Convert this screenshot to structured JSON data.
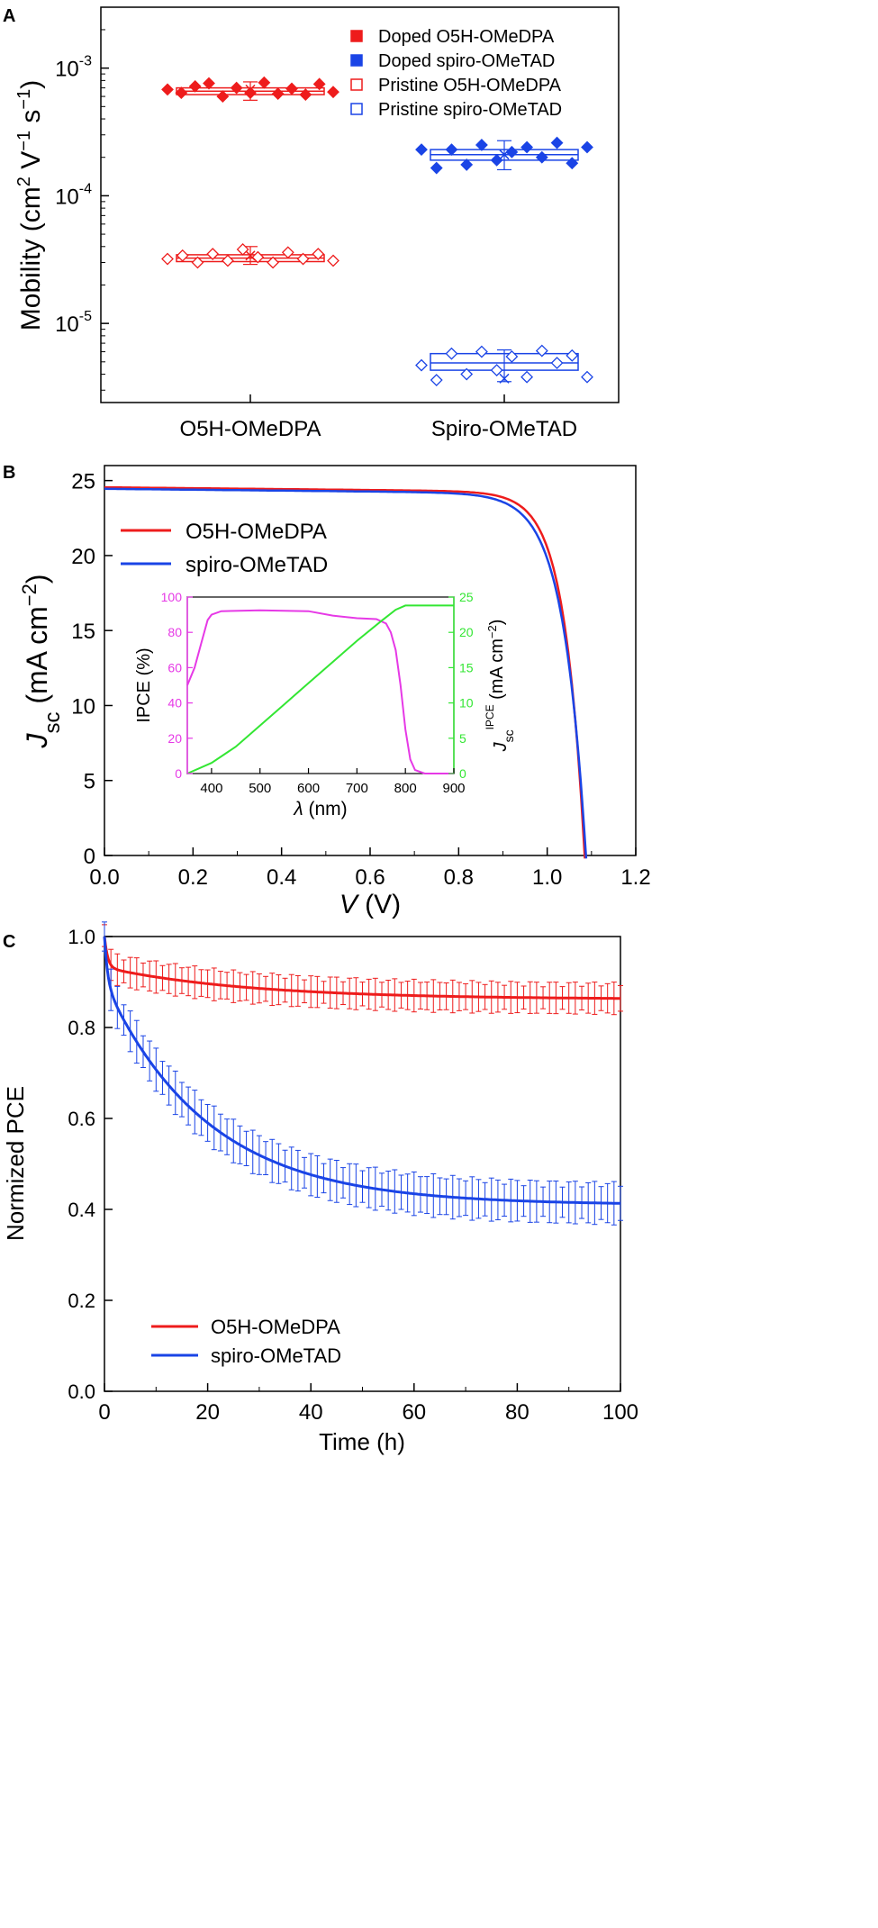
{
  "colors": {
    "red": "#ee1c1c",
    "blue": "#1a44e6",
    "magenta": "#e639e6",
    "green": "#33e633",
    "axis": "#000000"
  },
  "chart_data": [
    {
      "panel_label": "A",
      "type": "box-scatter",
      "ylabel_main": "Mobility (cm",
      "ylabel_sup1": "2",
      "ylabel_v": " V",
      "ylabel_sup2": "−1",
      "ylabel_s": " s",
      "ylabel_sup3": "−1",
      "ylabel_close": ")",
      "yscale": "log",
      "ylim": [
        2.4e-06,
        0.003
      ],
      "categories": [
        "O5H-OMeDPA",
        "Spiro-OMeTAD"
      ],
      "yticks": [
        {
          "value": 0.001,
          "base": "10",
          "exp": "-3"
        },
        {
          "value": 0.0001,
          "base": "10",
          "exp": "-4"
        },
        {
          "value": 1e-05,
          "base": "10",
          "exp": "-5"
        }
      ],
      "legend_position": "top-right",
      "series": [
        {
          "name": "Doped O5H-OMeDPA",
          "category": 0,
          "color": "#ee1c1c",
          "filled": true,
          "box": [
            0.00062,
            0.00066,
            0.0007
          ],
          "mean": 0.00068,
          "whisker": [
            0.00056,
            0.00078
          ],
          "points": [
            0.00068,
            0.00064,
            0.00072,
            0.00076,
            0.0006,
            0.0007,
            0.00064,
            0.00077,
            0.00063,
            0.00069,
            0.00062,
            0.00075,
            0.00065
          ]
        },
        {
          "name": "Doped spiro-OMeTAD",
          "category": 1,
          "color": "#1a44e6",
          "filled": true,
          "box": [
            0.00019,
            0.00021,
            0.00023
          ],
          "mean": 0.00021,
          "whisker": [
            0.00016,
            0.00027
          ],
          "points": [
            0.00023,
            0.000165,
            0.00023,
            0.000175,
            0.00025,
            0.00019,
            0.00022,
            0.00024,
            0.0002,
            0.00026,
            0.00018,
            0.00024
          ]
        },
        {
          "name": "Pristine O5H-OMeDPA",
          "category": 0,
          "color": "#ee1c1c",
          "filled": false,
          "box": [
            3.05e-05,
            3.25e-05,
            3.45e-05
          ],
          "mean": 3.4e-05,
          "whisker": [
            2.9e-05,
            4e-05
          ],
          "points": [
            3.2e-05,
            3.4e-05,
            3e-05,
            3.5e-05,
            3.1e-05,
            3.8e-05,
            3.3e-05,
            3e-05,
            3.6e-05,
            3.2e-05,
            3.5e-05,
            3.1e-05
          ]
        },
        {
          "name": "Pristine spiro-OMeTAD",
          "category": 1,
          "color": "#1a44e6",
          "filled": false,
          "box": [
            4.3e-06,
            4.9e-06,
            5.8e-06
          ],
          "mean": 3.7e-06,
          "whisker": [
            3.5e-06,
            6.2e-06
          ],
          "points": [
            4.7e-06,
            3.6e-06,
            5.8e-06,
            4e-06,
            6e-06,
            4.3e-06,
            5.5e-06,
            3.8e-06,
            6.1e-06,
            4.9e-06,
            5.6e-06,
            3.8e-06
          ]
        }
      ]
    },
    {
      "panel_label": "B",
      "type": "line",
      "xlabel": "V",
      "xlabel_unit": " (V)",
      "ylabel": "J",
      "ylabel_sub": "sc",
      "ylabel_unit_open": " (mA cm",
      "ylabel_unit_sup": "−2",
      "ylabel_unit_close": ")",
      "xlim": [
        0,
        1.2
      ],
      "ylim": [
        0,
        26
      ],
      "xticks": [
        "0.0",
        "0.2",
        "0.4",
        "0.6",
        "0.8",
        "1.0",
        "1.2"
      ],
      "yticks": [
        "0",
        "5",
        "10",
        "15",
        "20",
        "25"
      ],
      "legend_position": "top-left",
      "series": [
        {
          "name": "O5H-OMeDPA",
          "color": "#ee1c1c",
          "jsc": 24.55,
          "voc": 1.085,
          "knee": 0.045
        },
        {
          "name": "spiro-OMeTAD",
          "color": "#1a44e6",
          "jsc": 24.45,
          "voc": 1.088,
          "knee": 0.051
        }
      ],
      "inset": {
        "xlabel": "λ",
        "xlabel_unit": " (nm)",
        "ylabel_left": "IPCE (%)",
        "ylabel_right": "J",
        "ylabel_right_sub": "sc",
        "ylabel_right_sup": "IPCE",
        "ylabel_right_unit": " (mA cm",
        "ylabel_right_unit_sup": "−2",
        "ylabel_right_unit_close": ")",
        "xlim": [
          350,
          900
        ],
        "ylim_left": [
          0,
          100
        ],
        "ylim_right": [
          0,
          25
        ],
        "xticks": [
          "400",
          "500",
          "600",
          "700",
          "800",
          "900"
        ],
        "yticks_left": [
          "0",
          "20",
          "40",
          "60",
          "80",
          "100"
        ],
        "yticks_right": [
          "0",
          "5",
          "10",
          "15",
          "20",
          "25"
        ],
        "ipce": {
          "color": "#e639e6",
          "x": [
            350,
            365,
            380,
            392,
            400,
            420,
            500,
            600,
            650,
            700,
            740,
            760,
            770,
            780,
            790,
            800,
            810,
            820,
            840,
            900
          ],
          "y": [
            50,
            60,
            75,
            87,
            90,
            92,
            92.5,
            92,
            89.5,
            88,
            87.5,
            85,
            80,
            70,
            50,
            25,
            8,
            2,
            0,
            0
          ]
        },
        "jsc_ipce": {
          "color": "#33e633",
          "x": [
            350,
            400,
            450,
            500,
            550,
            600,
            650,
            700,
            750,
            780,
            800,
            900
          ],
          "y": [
            0,
            1.5,
            3.8,
            6.8,
            9.8,
            12.8,
            15.8,
            18.8,
            21.6,
            23.2,
            23.8,
            23.8
          ]
        }
      }
    },
    {
      "panel_label": "C",
      "type": "line",
      "xlabel": "Time (h)",
      "ylabel": "Normized PCE",
      "xlim": [
        0,
        100
      ],
      "ylim": [
        0,
        1.0
      ],
      "xticks": [
        "0",
        "20",
        "40",
        "60",
        "80",
        "100"
      ],
      "yticks": [
        "0.0",
        "0.2",
        "0.4",
        "0.6",
        "0.8",
        "1.0"
      ],
      "legend_position": "bottom-left",
      "series": [
        {
          "name": "O5H-OMeDPA",
          "color": "#ee1c1c",
          "start": 1.0,
          "end": 0.862,
          "fast_amp": 0.07,
          "fast_tau": 0.6,
          "slow_amp": 0.07,
          "slow_tau": 28,
          "err": 0.03
        },
        {
          "name": "spiro-OMeTAD",
          "color": "#1a44e6",
          "start": 1.0,
          "end": 0.41,
          "fast_amp": 0.1,
          "fast_tau": 0.6,
          "slow_amp": 0.49,
          "slow_tau": 20,
          "err": 0.04
        }
      ]
    }
  ]
}
